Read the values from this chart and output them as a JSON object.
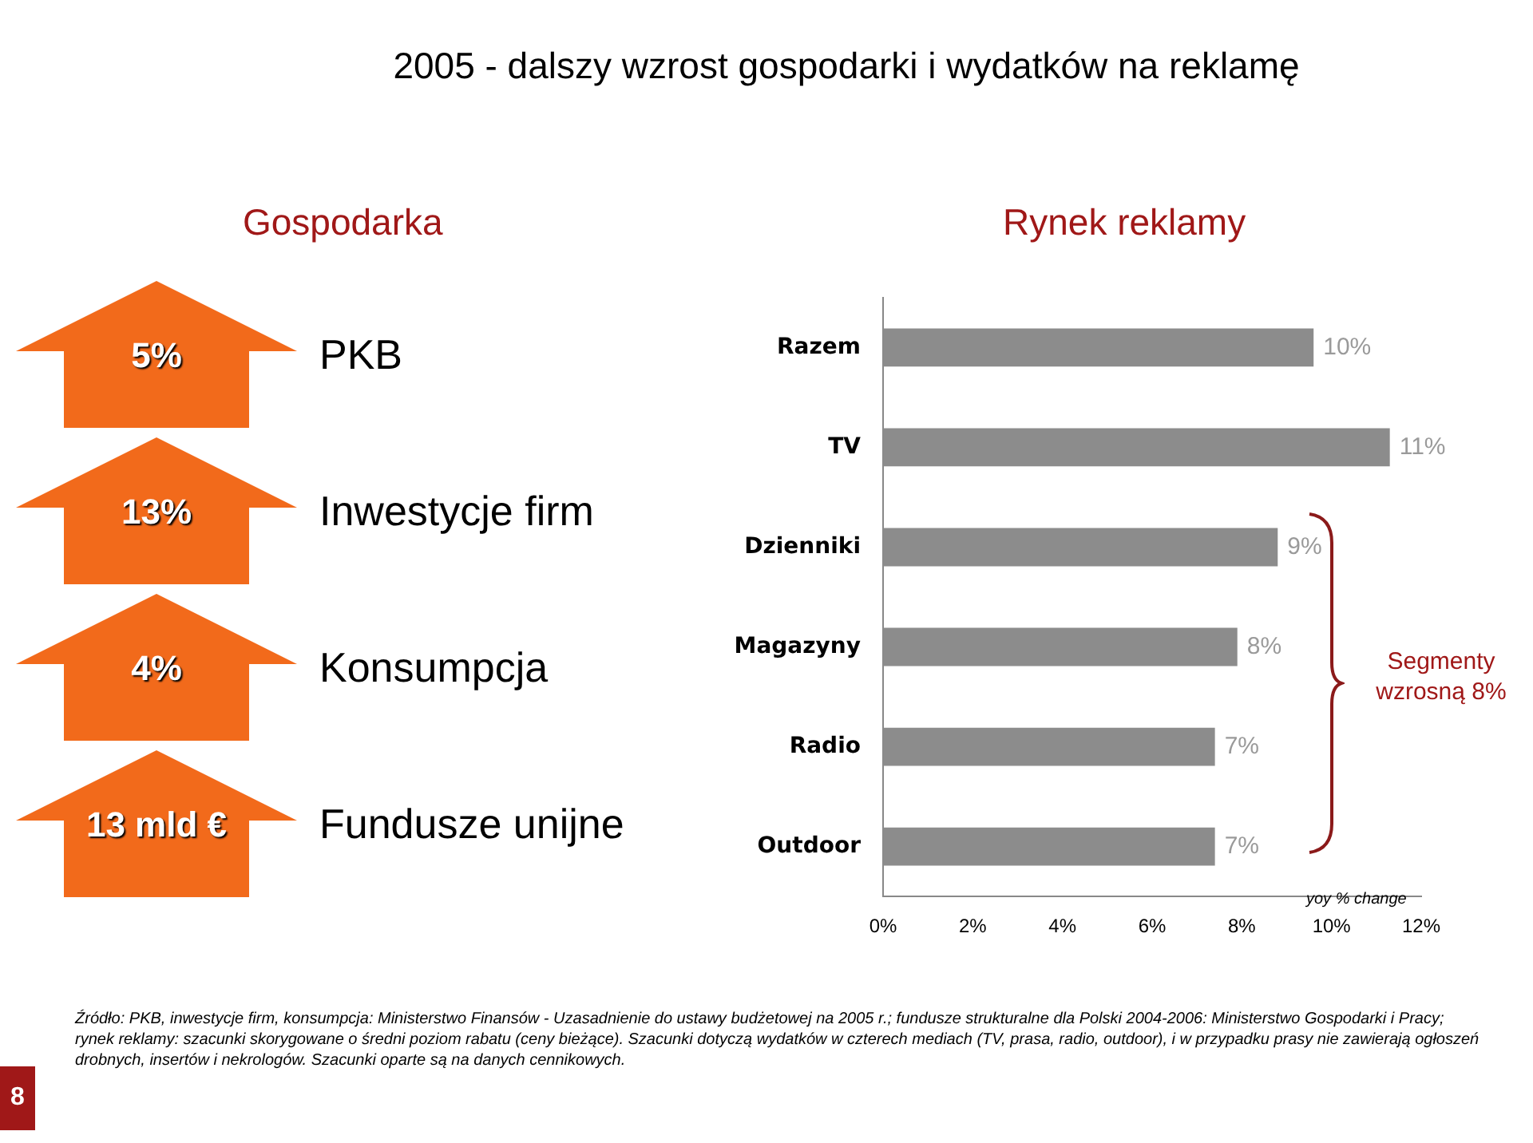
{
  "chart_data": {
    "type": "bar",
    "orientation": "horizontal",
    "title": "2005 - dalszy wzrost gospodarki i wydatków na reklamę",
    "categories": [
      "Razem",
      "TV",
      "Dzienniki",
      "Magazyny",
      "Radio",
      "Outdoor"
    ],
    "values": [
      9.6,
      11.3,
      8.8,
      7.9,
      7.4,
      7.4
    ],
    "value_labels": [
      "10%",
      "11%",
      "9%",
      "8%",
      "7%",
      "7%"
    ],
    "color": "#8c8c8c",
    "xlim": [
      0,
      12
    ],
    "xticks": [
      {
        "value": 0,
        "label": "0%"
      },
      {
        "value": 2,
        "label": "2%"
      },
      {
        "value": 4,
        "label": "4%"
      },
      {
        "value": 6,
        "label": "6%"
      },
      {
        "value": 8,
        "label": "8%"
      },
      {
        "value": 10,
        "label": "10%"
      },
      {
        "value": 12,
        "label": "12%"
      }
    ],
    "grid": false,
    "legend": false,
    "annotations": [
      "Gospodarka",
      "Rynek reklamy",
      "5%",
      "PKB",
      "13%",
      "Inwestycje firm",
      "4%",
      "Konsumpcja",
      "13 mld €",
      "Fundusze unijne",
      "Segmenty wzrosną 8%",
      "yoy % change",
      "8",
      "Źródło: PKB, inwestycje firm, konsumpcja: Ministerstwo Finansów - Uzasadnienie do ustawy budżetowej na 2005 r.; fundusze strukturalne dla Polski 2004-2006: Ministerstwo Gospodarki i Pracy; rynek reklamy: szacunki skorygowane o średni poziom rabatu (ceny bieżące). Szacunki dotyczą wydatków w czterech mediach (TV, prasa, radio, outdoor), i w przypadku prasy nie zawierają ogłoszeń drobnych, insertów i nekrologów. Szacunki oparte są na danych cennikowych."
    ]
  }
}
